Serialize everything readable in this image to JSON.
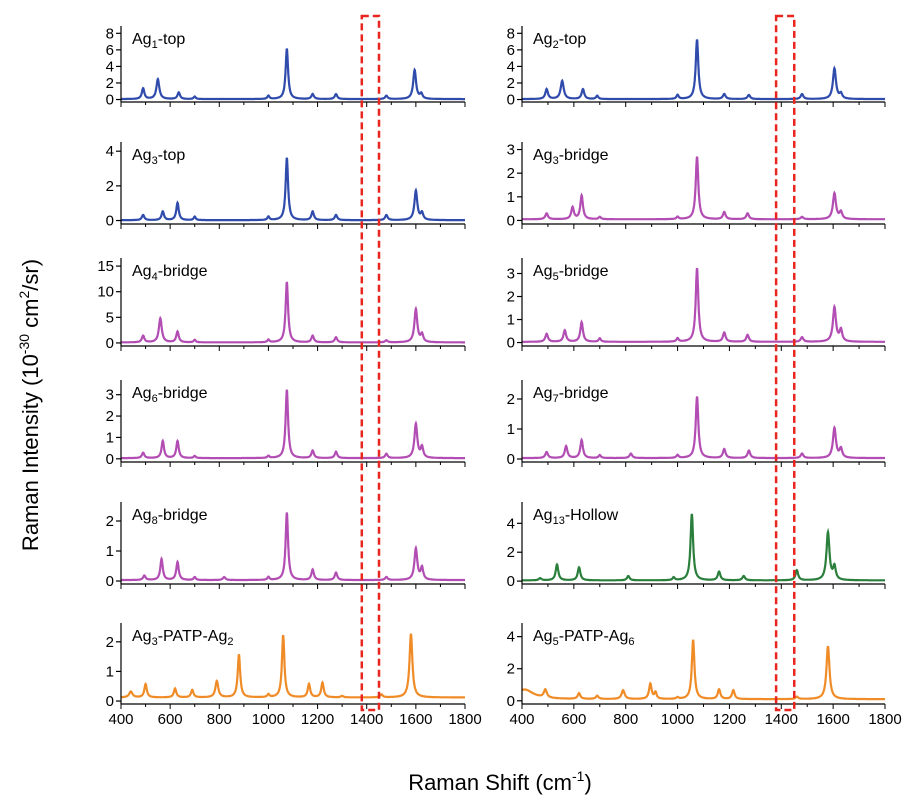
{
  "figure": {
    "ylabel": "Raman Intensity (10",
    "ylabel_sup": "-30",
    "ylabel_tail": " cm",
    "ylabel_sup2": "2",
    "ylabel_end": "/sr)",
    "xlabel": "Raman Shift (cm",
    "xlabel_sup": "-1",
    "xlabel_end": ")",
    "highlight_band": [
      1380,
      1450
    ],
    "highlight_color": "#e8251e"
  },
  "chart_data": [
    {
      "type": "line",
      "label_main": "Ag",
      "label_sub": "1",
      "label_rest": "-top",
      "color": "#2f4bab",
      "baseline": 0.05,
      "ylim": [
        -0.3,
        8.4
      ],
      "yticks": [
        0,
        2,
        4,
        6,
        8
      ],
      "peaks": [
        [
          490,
          1.3,
          6
        ],
        [
          550,
          2.4,
          7
        ],
        [
          635,
          0.8,
          6
        ],
        [
          700,
          0.3,
          5
        ],
        [
          1000,
          0.4,
          5
        ],
        [
          1075,
          6.1,
          6
        ],
        [
          1180,
          0.6,
          6
        ],
        [
          1275,
          0.6,
          6
        ],
        [
          1480,
          0.4,
          6
        ],
        [
          1595,
          3.5,
          7
        ],
        [
          1622,
          0.6,
          6
        ]
      ],
      "x": [
        400,
        1800
      ],
      "xticks": [
        400,
        600,
        800,
        1000,
        1200,
        1400,
        1600,
        1800
      ]
    },
    {
      "type": "line",
      "label_main": "Ag",
      "label_sub": "2",
      "label_rest": "-top",
      "color": "#2f4bab",
      "baseline": 0.05,
      "ylim": [
        -0.3,
        8.4
      ],
      "yticks": [
        0,
        2,
        4,
        6,
        8
      ],
      "peaks": [
        [
          495,
          1.2,
          6
        ],
        [
          555,
          2.2,
          7
        ],
        [
          635,
          1.2,
          6
        ],
        [
          690,
          0.4,
          5
        ],
        [
          1000,
          0.5,
          5
        ],
        [
          1075,
          7.2,
          6
        ],
        [
          1180,
          0.6,
          6
        ],
        [
          1275,
          0.5,
          6
        ],
        [
          1480,
          0.6,
          6
        ],
        [
          1605,
          3.7,
          7
        ],
        [
          1630,
          0.6,
          6
        ]
      ],
      "x": [
        400,
        1800
      ],
      "xticks": [
        400,
        600,
        800,
        1000,
        1200,
        1400,
        1600,
        1800
      ]
    },
    {
      "type": "line",
      "label_main": "Ag",
      "label_sub": "3",
      "label_rest": "-top",
      "color": "#2f4bab",
      "baseline": 0.02,
      "ylim": [
        -0.2,
        4.3
      ],
      "yticks": [
        0,
        2,
        4
      ],
      "peaks": [
        [
          490,
          0.3,
          6
        ],
        [
          570,
          0.5,
          6
        ],
        [
          630,
          1.0,
          6
        ],
        [
          700,
          0.2,
          5
        ],
        [
          1000,
          0.2,
          5
        ],
        [
          1075,
          3.6,
          6
        ],
        [
          1180,
          0.5,
          6
        ],
        [
          1275,
          0.3,
          6
        ],
        [
          1480,
          0.3,
          6
        ],
        [
          1600,
          1.7,
          7
        ],
        [
          1625,
          0.4,
          6
        ]
      ],
      "x": [
        400,
        1800
      ],
      "xticks": [
        400,
        600,
        800,
        1000,
        1200,
        1400,
        1600,
        1800
      ]
    },
    {
      "type": "line",
      "label_main": "Ag",
      "label_sub": "3",
      "label_rest": "-bridge",
      "color": "#b24db3",
      "baseline": 0.05,
      "ylim": [
        -0.15,
        3.15
      ],
      "yticks": [
        0,
        1,
        2,
        3
      ],
      "peaks": [
        [
          495,
          0.25,
          6
        ],
        [
          595,
          0.5,
          6
        ],
        [
          630,
          1.0,
          6
        ],
        [
          700,
          0.1,
          5
        ],
        [
          1000,
          0.1,
          5
        ],
        [
          1075,
          2.65,
          6
        ],
        [
          1180,
          0.3,
          6
        ],
        [
          1270,
          0.25,
          6
        ],
        [
          1480,
          0.1,
          6
        ],
        [
          1605,
          1.1,
          7
        ],
        [
          1630,
          0.3,
          6
        ]
      ],
      "x": [
        400,
        1800
      ],
      "xticks": [
        400,
        600,
        800,
        1000,
        1200,
        1400,
        1600,
        1800
      ]
    },
    {
      "type": "line",
      "label_main": "Ag",
      "label_sub": "4",
      "label_rest": "-bridge",
      "color": "#b24db3",
      "baseline": 0.1,
      "ylim": [
        -0.6,
        15.8
      ],
      "yticks": [
        0,
        5,
        10,
        15
      ],
      "peaks": [
        [
          490,
          1.3,
          6
        ],
        [
          560,
          4.7,
          7
        ],
        [
          630,
          2.1,
          6
        ],
        [
          700,
          0.5,
          5
        ],
        [
          1000,
          0.5,
          5
        ],
        [
          1075,
          11.8,
          6
        ],
        [
          1180,
          1.3,
          6
        ],
        [
          1275,
          1.0,
          6
        ],
        [
          1480,
          0.4,
          6
        ],
        [
          1600,
          6.5,
          7
        ],
        [
          1625,
          1.5,
          6
        ]
      ],
      "x": [
        400,
        1800
      ],
      "xticks": [
        400,
        600,
        800,
        1000,
        1200,
        1400,
        1600,
        1800
      ]
    },
    {
      "type": "line",
      "label_main": "Ag",
      "label_sub": "5",
      "label_rest": "-bridge",
      "color": "#b24db3",
      "baseline": 0.03,
      "ylim": [
        -0.15,
        3.5
      ],
      "yticks": [
        0,
        1,
        2,
        3
      ],
      "peaks": [
        [
          495,
          0.35,
          6
        ],
        [
          565,
          0.5,
          6
        ],
        [
          630,
          0.85,
          6
        ],
        [
          700,
          0.15,
          5
        ],
        [
          1000,
          0.15,
          5
        ],
        [
          1075,
          3.2,
          6
        ],
        [
          1180,
          0.4,
          6
        ],
        [
          1270,
          0.3,
          6
        ],
        [
          1480,
          0.2,
          6
        ],
        [
          1605,
          1.5,
          7
        ],
        [
          1630,
          0.5,
          6
        ]
      ],
      "x": [
        400,
        1800
      ],
      "xticks": [
        400,
        600,
        800,
        1000,
        1200,
        1400,
        1600,
        1800
      ]
    },
    {
      "type": "line",
      "label_main": "Ag",
      "label_sub": "6",
      "label_rest": "-bridge",
      "color": "#b24db3",
      "baseline": 0.03,
      "ylim": [
        -0.15,
        3.5
      ],
      "yticks": [
        0,
        1,
        2,
        3
      ],
      "peaks": [
        [
          490,
          0.25,
          6
        ],
        [
          570,
          0.8,
          6
        ],
        [
          630,
          0.8,
          6
        ],
        [
          700,
          0.1,
          5
        ],
        [
          1000,
          0.1,
          5
        ],
        [
          1075,
          3.2,
          6
        ],
        [
          1180,
          0.35,
          6
        ],
        [
          1275,
          0.3,
          6
        ],
        [
          1480,
          0.2,
          6
        ],
        [
          1600,
          1.6,
          7
        ],
        [
          1625,
          0.5,
          6
        ]
      ],
      "x": [
        400,
        1800
      ],
      "xticks": [
        400,
        600,
        800,
        1000,
        1200,
        1400,
        1600,
        1800
      ]
    },
    {
      "type": "line",
      "label_main": "Ag",
      "label_sub": "7",
      "label_rest": "-bridge",
      "color": "#b24db3",
      "baseline": 0.03,
      "ylim": [
        -0.1,
        2.5
      ],
      "yticks": [
        0,
        1,
        2
      ],
      "peaks": [
        [
          495,
          0.2,
          6
        ],
        [
          570,
          0.4,
          6
        ],
        [
          630,
          0.6,
          6
        ],
        [
          700,
          0.1,
          5
        ],
        [
          820,
          0.15,
          6
        ],
        [
          1000,
          0.1,
          5
        ],
        [
          1075,
          2.05,
          6
        ],
        [
          1180,
          0.3,
          6
        ],
        [
          1275,
          0.25,
          6
        ],
        [
          1480,
          0.15,
          6
        ],
        [
          1605,
          1.0,
          7
        ],
        [
          1630,
          0.3,
          6
        ]
      ],
      "x": [
        400,
        1800
      ],
      "xticks": [
        400,
        600,
        800,
        1000,
        1200,
        1400,
        1600,
        1800
      ]
    },
    {
      "type": "line",
      "label_main": "Ag",
      "label_sub": "8",
      "label_rest": "-bridge",
      "color": "#b24db3",
      "baseline": 0.03,
      "ylim": [
        -0.1,
        2.5
      ],
      "yticks": [
        0,
        1,
        2
      ],
      "peaks": [
        [
          495,
          0.15,
          6
        ],
        [
          565,
          0.7,
          6
        ],
        [
          630,
          0.6,
          6
        ],
        [
          700,
          0.1,
          5
        ],
        [
          820,
          0.1,
          6
        ],
        [
          1000,
          0.1,
          5
        ],
        [
          1075,
          2.25,
          6
        ],
        [
          1180,
          0.35,
          6
        ],
        [
          1275,
          0.25,
          6
        ],
        [
          1480,
          0.1,
          6
        ],
        [
          1600,
          1.05,
          7
        ],
        [
          1625,
          0.4,
          6
        ]
      ],
      "x": [
        400,
        1800
      ],
      "xticks": [
        400,
        600,
        800,
        1000,
        1200,
        1400,
        1600,
        1800
      ]
    },
    {
      "type": "line",
      "label_main": "Ag",
      "label_sub": "13",
      "label_rest": "-Hollow",
      "color": "#2a7f3c",
      "baseline": 0.05,
      "ylim": [
        -0.2,
        5.2
      ],
      "yticks": [
        0,
        2,
        4
      ],
      "peaks": [
        [
          470,
          0.15,
          6
        ],
        [
          535,
          1.1,
          6
        ],
        [
          620,
          0.9,
          6
        ],
        [
          810,
          0.3,
          6
        ],
        [
          985,
          0.2,
          5
        ],
        [
          1055,
          4.6,
          6
        ],
        [
          1160,
          0.6,
          6
        ],
        [
          1255,
          0.3,
          6
        ],
        [
          1460,
          0.7,
          6
        ],
        [
          1580,
          3.3,
          7
        ],
        [
          1605,
          0.9,
          6
        ]
      ],
      "x": [
        400,
        1800
      ],
      "xticks": [
        400,
        600,
        800,
        1000,
        1200,
        1400,
        1600,
        1800
      ]
    },
    {
      "type": "line",
      "label_main": "Ag",
      "label_sub": "3",
      "label_rest": "-PATP-Ag",
      "label_sub2": "2",
      "color": "#f08c28",
      "baseline": 0.12,
      "ylim": [
        -0.1,
        2.5
      ],
      "yticks": [
        0,
        1,
        2
      ],
      "peaks": [
        [
          440,
          0.2,
          8
        ],
        [
          500,
          0.45,
          6
        ],
        [
          620,
          0.3,
          6
        ],
        [
          690,
          0.25,
          6
        ],
        [
          790,
          0.55,
          7
        ],
        [
          880,
          1.45,
          6
        ],
        [
          1000,
          0.1,
          5
        ],
        [
          1060,
          2.1,
          6
        ],
        [
          1165,
          0.45,
          6
        ],
        [
          1220,
          0.5,
          6
        ],
        [
          1300,
          0.05,
          6
        ],
        [
          1460,
          0.1,
          6
        ],
        [
          1580,
          2.15,
          7
        ]
      ],
      "x": [
        400,
        1800
      ],
      "xticks": [
        400,
        600,
        800,
        1000,
        1200,
        1400,
        1600,
        1800
      ]
    },
    {
      "type": "line",
      "label_main": "Ag",
      "label_sub": "5",
      "label_rest": "-PATP-Ag",
      "label_sub2": "6",
      "color": "#f08c28",
      "baseline": 0.1,
      "ylim": [
        -0.2,
        4.6
      ],
      "yticks": [
        0,
        2,
        4
      ],
      "peaks": [
        [
          410,
          0.6,
          40
        ],
        [
          490,
          0.5,
          7
        ],
        [
          620,
          0.35,
          6
        ],
        [
          690,
          0.2,
          6
        ],
        [
          790,
          0.55,
          7
        ],
        [
          895,
          0.95,
          6
        ],
        [
          915,
          0.4,
          5
        ],
        [
          1000,
          0.1,
          5
        ],
        [
          1060,
          3.7,
          6
        ],
        [
          1160,
          0.6,
          6
        ],
        [
          1215,
          0.55,
          6
        ],
        [
          1460,
          0.15,
          6
        ],
        [
          1580,
          3.3,
          7
        ]
      ],
      "x": [
        400,
        1800
      ],
      "xticks": [
        400,
        600,
        800,
        1000,
        1200,
        1400,
        1600,
        1800
      ]
    }
  ]
}
